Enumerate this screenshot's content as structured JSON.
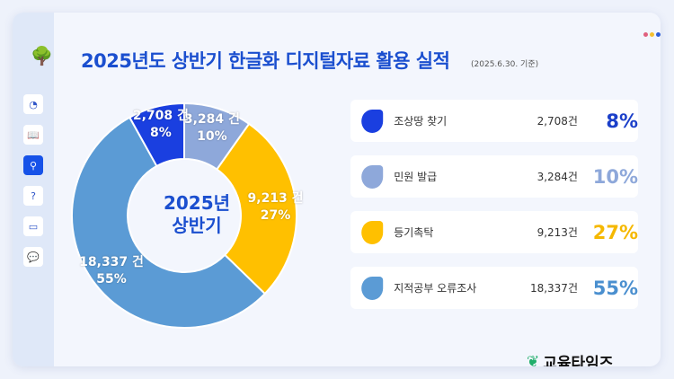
{
  "header": {
    "title": "2025년도 상반기 한글화 디지털자료 활용 실적",
    "subtitle": "(2025.6.30. 기준)"
  },
  "sidebar": {
    "items": [
      {
        "icon": "pie-chart-icon"
      },
      {
        "icon": "book-icon"
      },
      {
        "icon": "search-icon",
        "active": true
      },
      {
        "icon": "notepad-question-icon"
      },
      {
        "icon": "laptop-icon"
      },
      {
        "icon": "chat-icon"
      }
    ]
  },
  "center_label": [
    "2025년",
    "상반기"
  ],
  "brand": "교육타임즈",
  "chart_data": {
    "type": "pie",
    "title": "2025년도 상반기 한글화 디지털자료 활용 실적",
    "center_text": "2025년 상반기",
    "slices": [
      {
        "name": "조상땅 찾기",
        "value": 2708,
        "count_label": "2,708건",
        "chart_label": "2,708 건",
        "percent": "8%",
        "pct": 8,
        "color": "#1a3fe0",
        "pct_color": "#1b3fc9"
      },
      {
        "name": "민원 발급",
        "value": 3284,
        "count_label": "3,284건",
        "chart_label": "3,284 건",
        "percent": "10%",
        "pct": 10,
        "color": "#8ea8da",
        "pct_color": "#8ea8da"
      },
      {
        "name": "등기촉탁",
        "value": 9213,
        "count_label": "9,213건",
        "chart_label": "9,213 건",
        "percent": "27%",
        "pct": 27,
        "color": "#ffc000",
        "pct_color": "#f5b800"
      },
      {
        "name": "지적공부 오류조사",
        "value": 18337,
        "count_label": "18,337건",
        "chart_label": "18,337 건",
        "percent": "55%",
        "pct": 55,
        "color": "#5b9bd5",
        "pct_color": "#4a8fcf"
      }
    ]
  }
}
